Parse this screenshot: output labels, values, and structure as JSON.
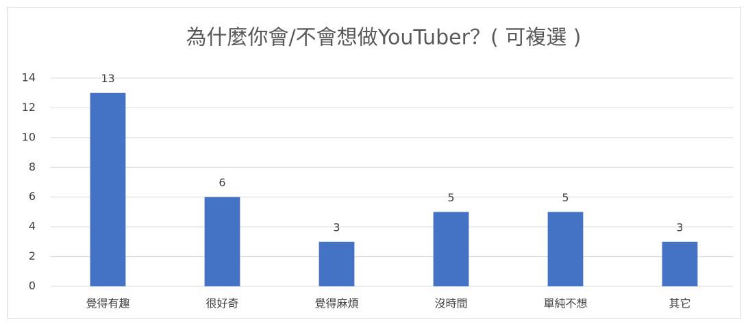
{
  "chart_data": {
    "type": "bar",
    "title": "為什麼你會/不會想做YouTuber？( 可複選 )",
    "categories": [
      "覺得有趣",
      "很好奇",
      "覺得麻煩",
      "沒時間",
      "單純不想",
      "其它"
    ],
    "values": [
      13,
      6,
      3,
      5,
      5,
      3
    ],
    "color": "#4472c4",
    "ylim": [
      0,
      14
    ],
    "yticks": [
      0,
      2,
      4,
      6,
      8,
      10,
      12,
      14
    ],
    "grid": true
  }
}
